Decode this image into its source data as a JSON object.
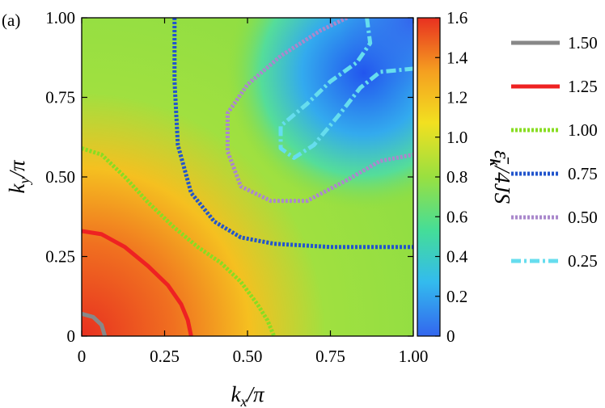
{
  "panel_label": "(a)",
  "colors": {
    "scale": [
      "#3366ee",
      "#33bbee",
      "#44dd99",
      "#99e040",
      "#f2e020",
      "#f5a020",
      "#e83020"
    ],
    "contours": {
      "1.50": "#888888",
      "1.25": "#ee2222",
      "1.00": "#88dd22",
      "0.75": "#2255cc",
      "0.50": "#aa88cc",
      "0.25": "#66ddee"
    }
  },
  "chart_data": {
    "type": "heatmap",
    "title": "",
    "xlabel": "k_x/π",
    "ylabel": "k_y/π",
    "colorbar_label": "ε̄_k/4JS",
    "xlim": [
      0,
      1
    ],
    "ylim": [
      0,
      1
    ],
    "clim": [
      0,
      1.6
    ],
    "x_ticks": [
      "0",
      "0.25",
      "0.50",
      "0.75",
      "1.00"
    ],
    "y_ticks": [
      "0",
      "0.25",
      "0.50",
      "0.75",
      "1.00"
    ],
    "colorbar_ticks": [
      "0",
      "0.2",
      "0.4",
      "0.6",
      "0.8",
      "1.0",
      "1.2",
      "1.4",
      "1.6"
    ],
    "legend": {
      "position": "right",
      "entries": [
        {
          "label": "1.50",
          "value": 1.5,
          "style": "solid"
        },
        {
          "label": "1.25",
          "value": 1.25,
          "style": "solid"
        },
        {
          "label": "1.00",
          "value": 1.0,
          "style": "dotted"
        },
        {
          "label": "0.75",
          "value": 0.75,
          "style": "dotted"
        },
        {
          "label": "0.50",
          "value": 0.5,
          "style": "dotted"
        },
        {
          "label": "0.25",
          "value": 0.25,
          "style": "dash-dot"
        }
      ]
    },
    "contours": [
      {
        "level": 1.5,
        "points": [
          [
            0,
            0.07
          ],
          [
            0.035,
            0.06
          ],
          [
            0.06,
            0.035
          ],
          [
            0.07,
            0
          ]
        ]
      },
      {
        "level": 1.25,
        "points": [
          [
            0,
            0.33
          ],
          [
            0.06,
            0.32
          ],
          [
            0.13,
            0.28
          ],
          [
            0.2,
            0.22
          ],
          [
            0.26,
            0.16
          ],
          [
            0.3,
            0.1
          ],
          [
            0.32,
            0.05
          ],
          [
            0.33,
            0
          ]
        ]
      },
      {
        "level": 1.0,
        "points": [
          [
            0,
            0.59
          ],
          [
            0.06,
            0.57
          ],
          [
            0.13,
            0.5
          ],
          [
            0.2,
            0.42
          ],
          [
            0.28,
            0.34
          ],
          [
            0.35,
            0.28
          ],
          [
            0.42,
            0.23
          ],
          [
            0.48,
            0.17
          ],
          [
            0.53,
            0.1
          ],
          [
            0.56,
            0.05
          ],
          [
            0.58,
            0
          ]
        ]
      },
      {
        "level": 0.75,
        "points": [
          [
            0.28,
            1.0
          ],
          [
            0.28,
            0.8
          ],
          [
            0.29,
            0.6
          ],
          [
            0.33,
            0.45
          ],
          [
            0.4,
            0.36
          ],
          [
            0.48,
            0.31
          ],
          [
            0.58,
            0.29
          ],
          [
            0.75,
            0.28
          ],
          [
            0.9,
            0.28
          ],
          [
            1.0,
            0.28
          ]
        ]
      },
      {
        "level": 0.5,
        "points": [
          [
            0.8,
            1.0
          ],
          [
            0.72,
            0.96
          ],
          [
            0.6,
            0.88
          ],
          [
            0.5,
            0.79
          ],
          [
            0.44,
            0.7
          ],
          [
            0.44,
            0.58
          ],
          [
            0.48,
            0.47
          ],
          [
            0.57,
            0.425
          ],
          [
            0.68,
            0.425
          ],
          [
            0.8,
            0.49
          ],
          [
            0.9,
            0.55
          ],
          [
            1.0,
            0.57
          ]
        ]
      },
      {
        "level": 0.25,
        "points": [
          [
            0.86,
            1.0
          ],
          [
            0.87,
            0.92
          ],
          [
            0.83,
            0.86
          ],
          [
            0.75,
            0.8
          ],
          [
            0.68,
            0.73
          ],
          [
            0.6,
            0.66
          ],
          [
            0.6,
            0.59
          ],
          [
            0.64,
            0.56
          ],
          [
            0.7,
            0.6
          ],
          [
            0.78,
            0.7
          ],
          [
            0.84,
            0.78
          ],
          [
            0.9,
            0.83
          ],
          [
            1.0,
            0.84
          ]
        ]
      }
    ]
  }
}
